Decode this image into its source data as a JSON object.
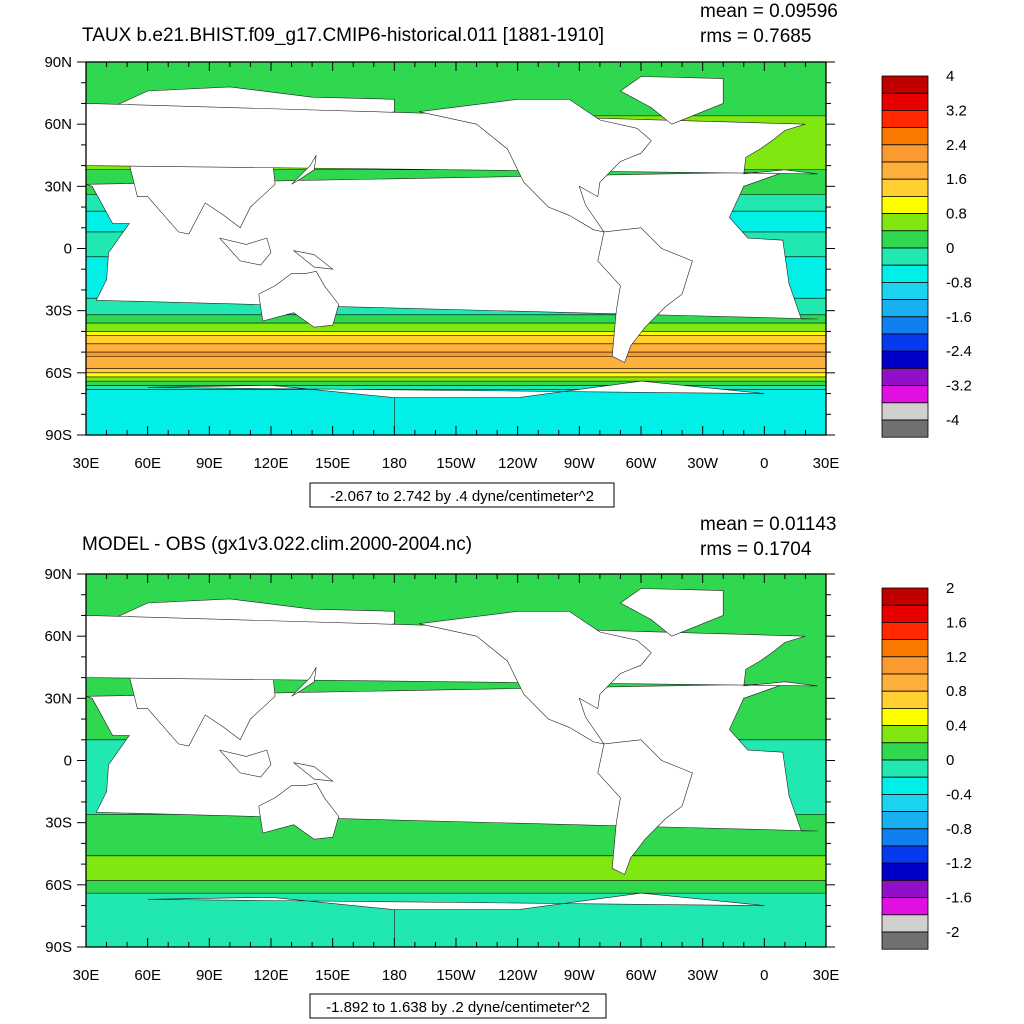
{
  "chart_data": [
    {
      "type": "heatmap",
      "title": "TAUX b.e21.BHIST.f09_g17.CMIP6-historical.011 [1881-1910]",
      "mean_label": "mean = 0.09596",
      "rms_label": "rms = 0.7685",
      "range_label": "-2.067 to 2.742 by .4 dyne/centimeter^2",
      "contour_min": -2.067,
      "contour_max": 2.742,
      "contour_interval": 0.4,
      "units": "dyne/centimeter^2",
      "colorbar_levels": [
        4,
        3.6,
        3.2,
        2.8,
        2.4,
        2.0,
        1.6,
        1.2,
        0.8,
        0.4,
        0,
        -0.4,
        -0.8,
        -1.2,
        -1.6,
        -2.0,
        -2.4,
        -2.8,
        -3.2,
        -3.6,
        -4
      ],
      "colorbar_labels": [
        "4",
        "3.2",
        "2.4",
        "1.6",
        "0.8",
        "0",
        "-0.8",
        "-1.6",
        "-2.4",
        "-3.2",
        "-4"
      ],
      "x_ticks": [
        "30E",
        "60E",
        "90E",
        "120E",
        "150E",
        "180",
        "150W",
        "120W",
        "90W",
        "60W",
        "30W",
        "0",
        "30E"
      ],
      "y_ticks": [
        "90N",
        "60N",
        "30N",
        "0",
        "30S",
        "60S",
        "90S"
      ],
      "zonal_band_mean": [
        {
          "lat": 75,
          "value": 0.2
        },
        {
          "lat": 50,
          "value": 0.7
        },
        {
          "lat": 30,
          "value": 0.2
        },
        {
          "lat": 15,
          "value": -0.5
        },
        {
          "lat": 0,
          "value": -0.3
        },
        {
          "lat": -15,
          "value": -0.7
        },
        {
          "lat": -30,
          "value": -0.2
        },
        {
          "lat": -40,
          "value": 0.9
        },
        {
          "lat": -50,
          "value": 2.1
        },
        {
          "lat": -60,
          "value": 1.4
        },
        {
          "lat": -68,
          "value": -0.4
        }
      ]
    },
    {
      "type": "heatmap",
      "title": "MODEL - OBS (gx1v3.022.clim.2000-2004.nc)",
      "mean_label": "mean = 0.01143",
      "rms_label": "rms = 0.1704",
      "range_label": "-1.892 to 1.638 by .2 dyne/centimeter^2",
      "contour_min": -1.892,
      "contour_max": 1.638,
      "contour_interval": 0.2,
      "units": "dyne/centimeter^2",
      "colorbar_levels": [
        2,
        1.8,
        1.6,
        1.4,
        1.2,
        1.0,
        0.8,
        0.6,
        0.4,
        0.2,
        0,
        -0.2,
        -0.4,
        -0.6,
        -0.8,
        -1.0,
        -1.2,
        -1.4,
        -1.6,
        -1.8,
        -2
      ],
      "colorbar_labels": [
        "2",
        "1.6",
        "1.2",
        "0.8",
        "0.4",
        "0",
        "-0.4",
        "-0.8",
        "-1.2",
        "-1.6",
        "-2"
      ],
      "x_ticks": [
        "30E",
        "60E",
        "90E",
        "120E",
        "150E",
        "180",
        "150W",
        "120W",
        "90W",
        "60W",
        "30W",
        "0",
        "30E"
      ],
      "y_ticks": [
        "90N",
        "60N",
        "30N",
        "0",
        "30S",
        "60S",
        "90S"
      ],
      "zonal_band_mean": [
        {
          "lat": 75,
          "value": 0.05
        },
        {
          "lat": 50,
          "value": 0.05
        },
        {
          "lat": 30,
          "value": 0.0
        },
        {
          "lat": 15,
          "value": 0.05
        },
        {
          "lat": 0,
          "value": -0.1
        },
        {
          "lat": -15,
          "value": -0.1
        },
        {
          "lat": -30,
          "value": 0.05
        },
        {
          "lat": -45,
          "value": 0.15
        },
        {
          "lat": -52,
          "value": 0.4
        },
        {
          "lat": -60,
          "value": 0.15
        },
        {
          "lat": -68,
          "value": -0.1
        }
      ]
    }
  ],
  "colors": {
    "palette": [
      "#c00000",
      "#e80000",
      "#ff2800",
      "#f87800",
      "#fb9a2e",
      "#fdb13c",
      "#ffd030",
      "#ffff00",
      "#80e810",
      "#30d850",
      "#20e8b0",
      "#00f0e8",
      "#1cd4f0",
      "#18b0f0",
      "#1080f0",
      "#0838f0",
      "#0000c8",
      "#9010c8",
      "#e010e0",
      "#d0d0d0",
      "#707070"
    ],
    "land": "#ffffff",
    "frame": "#000000"
  }
}
